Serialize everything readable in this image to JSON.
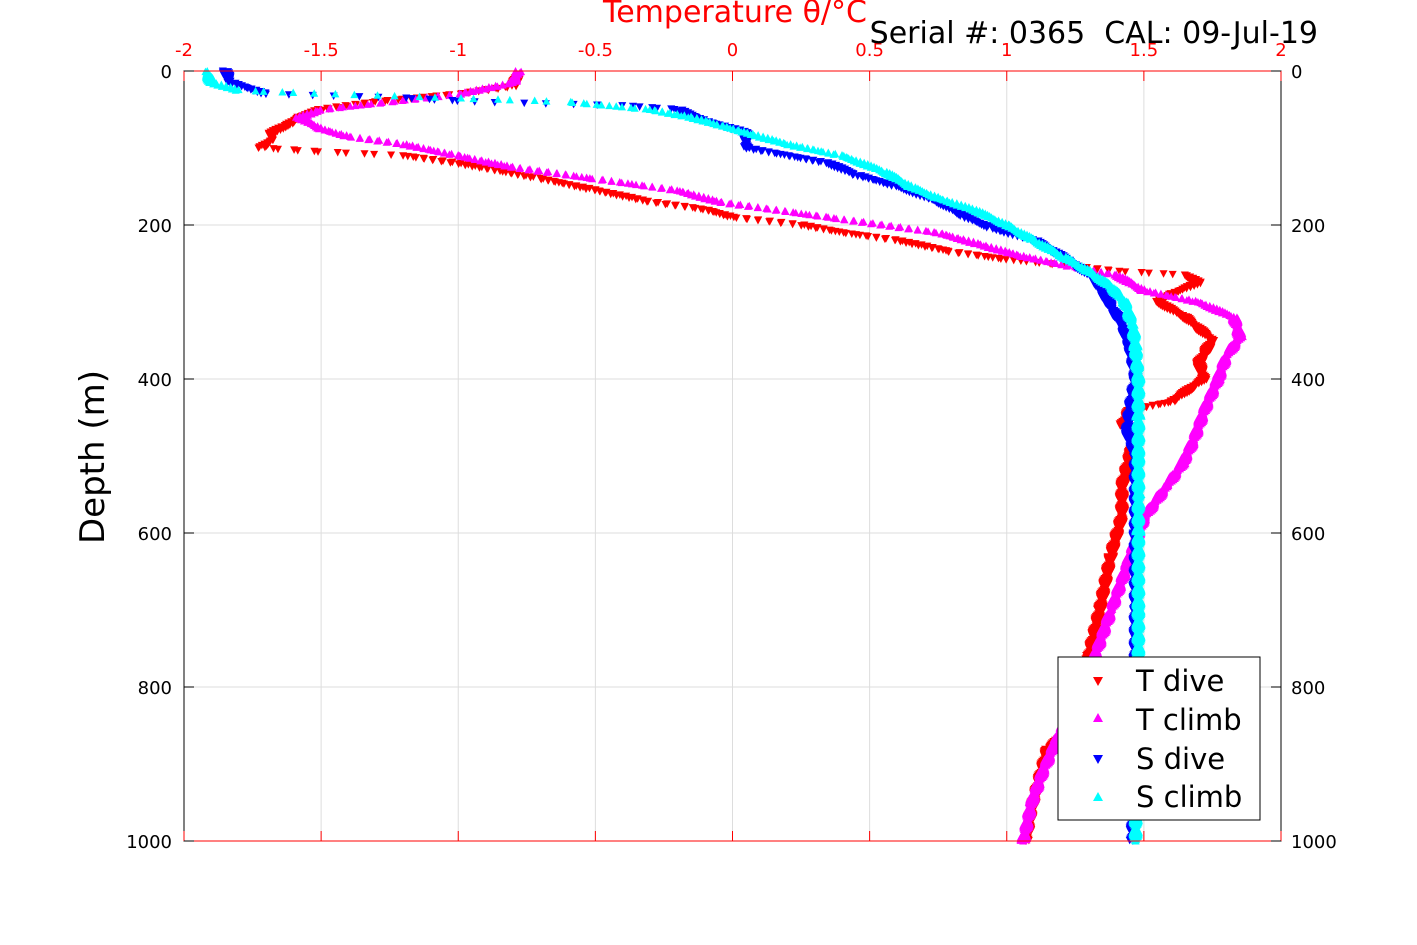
{
  "header": {
    "serial_text": "Serial #: 0365  CAL: 09-Jul-19"
  },
  "chart_data": {
    "type": "scatter",
    "title": "Temperature θ/°C",
    "xlabel": "",
    "ylabel": "Depth (m)",
    "xlim": [
      -2,
      2
    ],
    "ylim": [
      0,
      1000
    ],
    "y_reversed": true,
    "grid": true,
    "legend_position": "bottom-right",
    "x_ticks": [
      "-2",
      "-1.5",
      "-1",
      "-0.5",
      "0",
      "0.5",
      "1",
      "1.5",
      "2"
    ],
    "x_tick_values": [
      -2,
      -1.5,
      -1,
      -0.5,
      0,
      0.5,
      1,
      1.5,
      2
    ],
    "y_ticks": [
      "0",
      "200",
      "400",
      "600",
      "800",
      "1000"
    ],
    "y_tick_values": [
      0,
      200,
      400,
      600,
      800,
      1000
    ],
    "colors": {
      "axis_x": "#ff0000",
      "axis_y": "#000000",
      "grid": "#dddddd"
    },
    "series": [
      {
        "name": "T dive",
        "color": "#ff0000",
        "marker": "triangle-down",
        "points": [
          [
            -0.78,
            5
          ],
          [
            -0.8,
            20
          ],
          [
            -1.0,
            30
          ],
          [
            -1.3,
            40
          ],
          [
            -1.5,
            50
          ],
          [
            -1.58,
            60
          ],
          [
            -1.62,
            70
          ],
          [
            -1.68,
            80
          ],
          [
            -1.68,
            90
          ],
          [
            -1.72,
            100
          ],
          [
            -1.5,
            105
          ],
          [
            -1.2,
            110
          ],
          [
            -1.0,
            120
          ],
          [
            -0.7,
            140
          ],
          [
            -0.5,
            155
          ],
          [
            -0.3,
            170
          ],
          [
            -0.1,
            180
          ],
          [
            0.0,
            190
          ],
          [
            0.25,
            200
          ],
          [
            0.4,
            210
          ],
          [
            0.6,
            220
          ],
          [
            0.8,
            235
          ],
          [
            1.0,
            245
          ],
          [
            1.2,
            252
          ],
          [
            1.4,
            260
          ],
          [
            1.65,
            265
          ],
          [
            1.7,
            275
          ],
          [
            1.6,
            290
          ],
          [
            1.55,
            300
          ],
          [
            1.65,
            320
          ],
          [
            1.75,
            350
          ],
          [
            1.7,
            380
          ],
          [
            1.72,
            400
          ],
          [
            1.6,
            430
          ],
          [
            1.45,
            440
          ],
          [
            1.42,
            460
          ],
          [
            1.47,
            470
          ],
          [
            1.45,
            500
          ],
          [
            1.42,
            540
          ],
          [
            1.42,
            580
          ],
          [
            1.38,
            630
          ],
          [
            1.34,
            700
          ],
          [
            1.3,
            760
          ],
          [
            1.26,
            820
          ],
          [
            1.22,
            860
          ],
          [
            1.15,
            880
          ],
          [
            1.12,
            920
          ],
          [
            1.09,
            960
          ],
          [
            1.07,
            1000
          ]
        ]
      },
      {
        "name": "T climb",
        "color": "#ff00ff",
        "marker": "triangle-up",
        "points": [
          [
            -0.78,
            0
          ],
          [
            -0.8,
            15
          ],
          [
            -1.0,
            30
          ],
          [
            -1.25,
            40
          ],
          [
            -1.5,
            50
          ],
          [
            -1.58,
            60
          ],
          [
            -1.5,
            75
          ],
          [
            -1.4,
            85
          ],
          [
            -1.2,
            95
          ],
          [
            -1.0,
            110
          ],
          [
            -0.8,
            125
          ],
          [
            -0.5,
            140
          ],
          [
            -0.2,
            155
          ],
          [
            -0.05,
            170
          ],
          [
            0.15,
            180
          ],
          [
            0.35,
            190
          ],
          [
            0.55,
            200
          ],
          [
            0.75,
            210
          ],
          [
            0.9,
            225
          ],
          [
            1.05,
            240
          ],
          [
            1.25,
            255
          ],
          [
            1.4,
            265
          ],
          [
            1.5,
            285
          ],
          [
            1.7,
            300
          ],
          [
            1.83,
            320
          ],
          [
            1.85,
            345
          ],
          [
            1.8,
            370
          ],
          [
            1.77,
            400
          ],
          [
            1.72,
            440
          ],
          [
            1.68,
            480
          ],
          [
            1.64,
            510
          ],
          [
            1.58,
            540
          ],
          [
            1.5,
            580
          ],
          [
            1.44,
            640
          ],
          [
            1.38,
            700
          ],
          [
            1.32,
            760
          ],
          [
            1.25,
            820
          ],
          [
            1.18,
            870
          ],
          [
            1.13,
            910
          ],
          [
            1.09,
            950
          ],
          [
            1.06,
            1000
          ]
        ]
      },
      {
        "name": "S dive",
        "color": "#0000ff",
        "marker": "triangle-down",
        "points": [
          [
            -1.85,
            0
          ],
          [
            -1.83,
            15
          ],
          [
            -1.7,
            30
          ],
          [
            -1.2,
            35
          ],
          [
            -0.95,
            40
          ],
          [
            -0.4,
            45
          ],
          [
            -0.2,
            50
          ],
          [
            -0.1,
            65
          ],
          [
            0.05,
            80
          ],
          [
            0.05,
            100
          ],
          [
            0.2,
            110
          ],
          [
            0.35,
            120
          ],
          [
            0.45,
            135
          ],
          [
            0.6,
            150
          ],
          [
            0.75,
            170
          ],
          [
            0.85,
            190
          ],
          [
            0.95,
            205
          ],
          [
            1.1,
            220
          ],
          [
            1.22,
            245
          ],
          [
            1.32,
            270
          ],
          [
            1.37,
            300
          ],
          [
            1.42,
            330
          ],
          [
            1.45,
            360
          ],
          [
            1.47,
            400
          ],
          [
            1.45,
            440
          ],
          [
            1.44,
            470
          ],
          [
            1.47,
            500
          ],
          [
            1.47,
            550
          ],
          [
            1.47,
            600
          ],
          [
            1.47,
            700
          ],
          [
            1.47,
            800
          ],
          [
            1.46,
            900
          ],
          [
            1.46,
            1000
          ]
        ]
      },
      {
        "name": "S climb",
        "color": "#00ffff",
        "marker": "triangle-up",
        "points": [
          [
            -1.92,
            0
          ],
          [
            -1.9,
            15
          ],
          [
            -1.8,
            25
          ],
          [
            -1.6,
            28
          ],
          [
            -1.0,
            35
          ],
          [
            -0.6,
            40
          ],
          [
            -0.3,
            50
          ],
          [
            -0.15,
            60
          ],
          [
            -0.05,
            70
          ],
          [
            0.05,
            80
          ],
          [
            0.2,
            95
          ],
          [
            0.4,
            110
          ],
          [
            0.55,
            130
          ],
          [
            0.65,
            150
          ],
          [
            0.75,
            165
          ],
          [
            0.88,
            180
          ],
          [
            1.0,
            200
          ],
          [
            1.1,
            220
          ],
          [
            1.2,
            240
          ],
          [
            1.3,
            260
          ],
          [
            1.38,
            280
          ],
          [
            1.43,
            300
          ],
          [
            1.46,
            330
          ],
          [
            1.47,
            360
          ],
          [
            1.48,
            400
          ],
          [
            1.48,
            450
          ],
          [
            1.48,
            500
          ],
          [
            1.48,
            550
          ],
          [
            1.48,
            600
          ],
          [
            1.48,
            700
          ],
          [
            1.48,
            800
          ],
          [
            1.47,
            900
          ],
          [
            1.47,
            1000
          ]
        ]
      }
    ]
  }
}
